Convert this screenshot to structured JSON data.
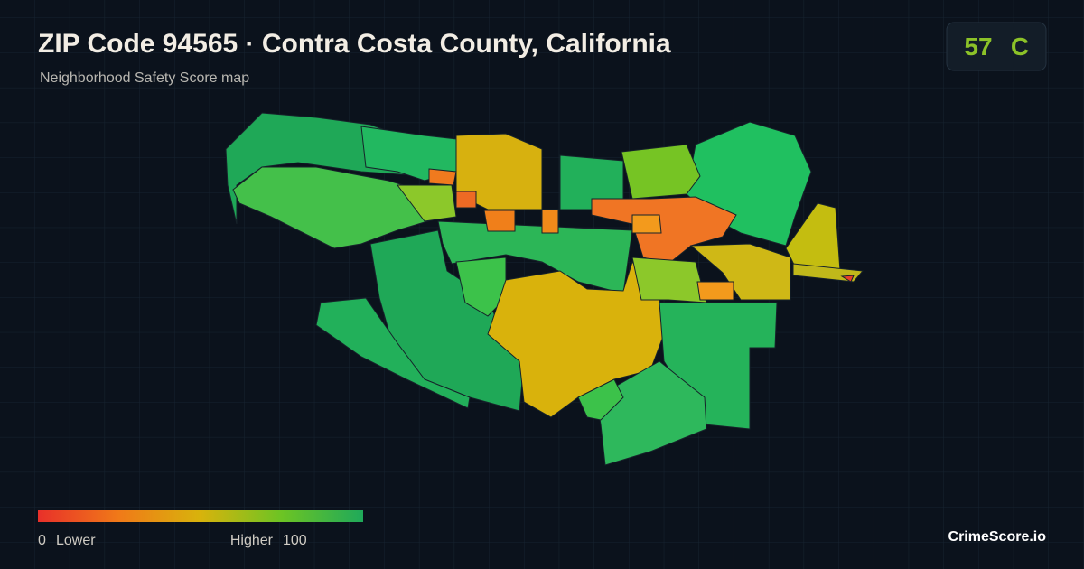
{
  "header": {
    "title": "ZIP Code 94565 · Contra Costa County, California",
    "subtitle": "Neighborhood Safety Score map"
  },
  "score": {
    "value": 57,
    "grade": "C"
  },
  "legend": {
    "min": 0,
    "min_label": "Lower",
    "max_label": "Higher",
    "max": 100
  },
  "brand": "CrimeScore.io"
}
